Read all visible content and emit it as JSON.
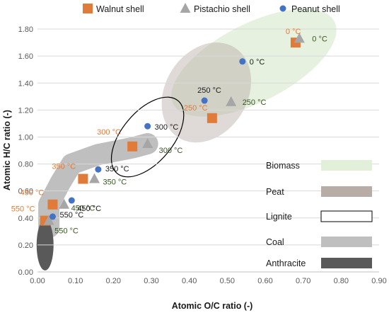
{
  "chart_data": {
    "type": "scatter",
    "xlabel": "Atomic O/C ratio (-)",
    "ylabel": "Atomic H/C ratio (-)",
    "xlim": [
      0,
      0.9
    ],
    "ylim": [
      0,
      1.9
    ],
    "xticks": [
      "0.00",
      "0.10",
      "0.20",
      "0.30",
      "0.40",
      "0.50",
      "0.60",
      "0.70",
      "0.80",
      "0.90"
    ],
    "yticks": [
      "0.00",
      "0.20",
      "0.40",
      "0.60",
      "0.80",
      "1.00",
      "1.20",
      "1.40",
      "1.60",
      "1.80"
    ],
    "legend_position": "top",
    "series": [
      {
        "name": "Walnut shell",
        "marker": "square",
        "color": "#e07b39",
        "points": [
          {
            "x": 0.68,
            "y": 1.7,
            "label": "0 °C"
          },
          {
            "x": 0.46,
            "y": 1.14,
            "label": "250 °C"
          },
          {
            "x": 0.25,
            "y": 0.93,
            "label": "300 °C"
          },
          {
            "x": 0.12,
            "y": 0.69,
            "label": "350 °C"
          },
          {
            "x": 0.04,
            "y": 0.5,
            "label": "450 °C"
          },
          {
            "x": 0.02,
            "y": 0.38,
            "label": "550 °C"
          }
        ]
      },
      {
        "name": "Pistachio shell",
        "marker": "triangle",
        "color": "#a6a6a6",
        "points": [
          {
            "x": 0.69,
            "y": 1.73,
            "label": "0 °C"
          },
          {
            "x": 0.51,
            "y": 1.26,
            "label": "250 °C"
          },
          {
            "x": 0.29,
            "y": 0.95,
            "label": "300 °C"
          },
          {
            "x": 0.15,
            "y": 0.69,
            "label": "350 °C"
          },
          {
            "x": 0.07,
            "y": 0.5,
            "label": "450 °C"
          },
          {
            "x": 0.03,
            "y": 0.38,
            "label": "550 °C"
          }
        ]
      },
      {
        "name": "Peanut shell",
        "marker": "circle",
        "color": "#4472c4",
        "points": [
          {
            "x": 0.54,
            "y": 1.56,
            "label": "0 °C"
          },
          {
            "x": 0.44,
            "y": 1.27,
            "label": "250 °C"
          },
          {
            "x": 0.29,
            "y": 1.08,
            "label": "300 °C"
          },
          {
            "x": 0.16,
            "y": 0.76,
            "label": "350 °C"
          },
          {
            "x": 0.09,
            "y": 0.53,
            "label": "450 °C"
          },
          {
            "x": 0.04,
            "y": 0.41,
            "label": "550 °C"
          }
        ]
      }
    ],
    "regions": [
      {
        "name": "Biomass",
        "fill": "#e2efd9",
        "stroke": "none",
        "label_color": "#1a1a1a"
      },
      {
        "name": "Peat",
        "fill": "#b7aca6",
        "stroke": "none"
      },
      {
        "name": "Lignite",
        "fill": "#ffffff",
        "stroke": "#000000"
      },
      {
        "name": "Coal",
        "fill": "#bfbfbf",
        "stroke": "none"
      },
      {
        "name": "Anthracite",
        "fill": "#595959",
        "stroke": "none"
      }
    ],
    "annotation_colors": {
      "walnut": "#e07b39",
      "pistachio": "#375623",
      "peanut": "#1a1a1a"
    }
  }
}
